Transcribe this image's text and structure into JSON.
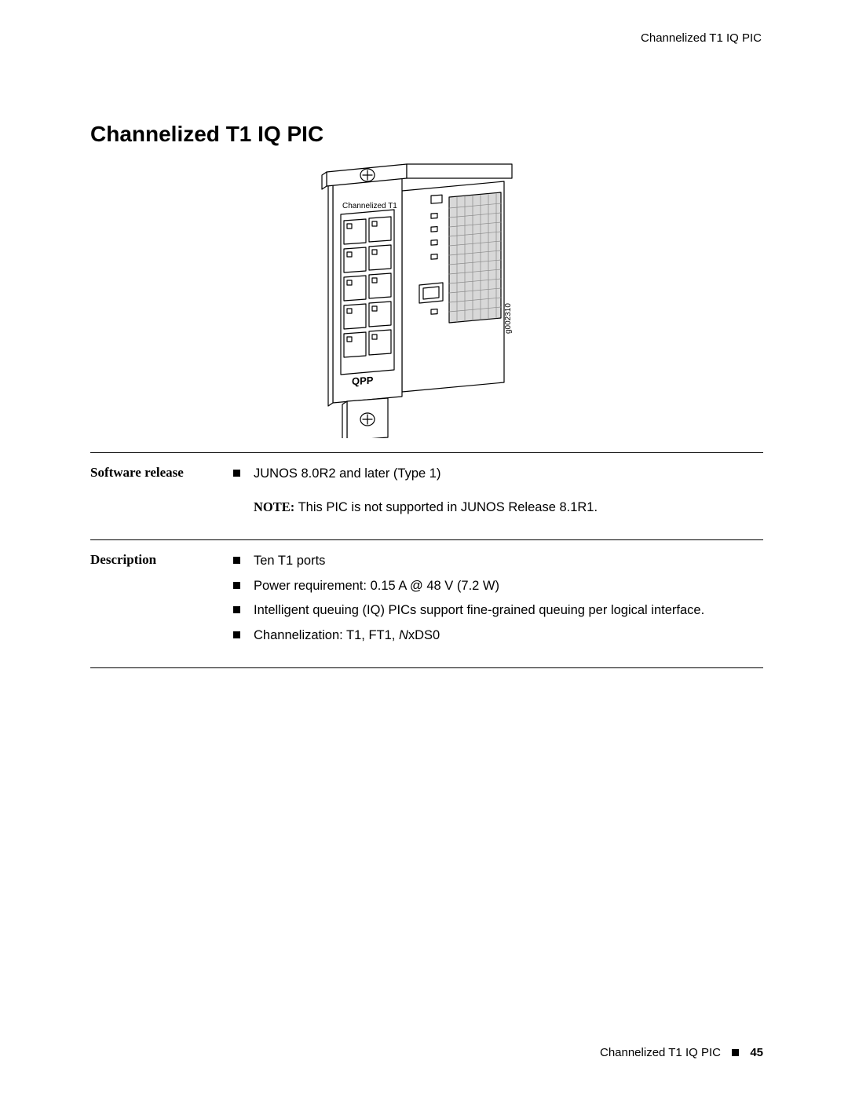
{
  "header": {
    "right": "Channelized T1 IQ PIC"
  },
  "title": "Channelized T1 IQ PIC",
  "figure": {
    "face_label": "Channelized T1",
    "ref_label": "g002310",
    "qpp_label": "QPP",
    "port_rows": 5,
    "colors": {
      "outline": "#000000",
      "fill": "#ffffff",
      "grid_fill": "#cccccc"
    }
  },
  "sections": [
    {
      "label": "Software release",
      "items": [
        "JUNOS 8.0R2 and later (Type 1)"
      ],
      "note_prefix": "NOTE:",
      "note": "This PIC is not supported in JUNOS Release 8.1R1."
    },
    {
      "label": "Description",
      "items": [
        "Ten T1 ports",
        "Power requirement: 0.15 A @ 48 V (7.2 W)",
        "Intelligent queuing (IQ) PICs support fine-grained queuing per logical interface.",
        "Channelization: T1, FT1, NxDS0"
      ]
    }
  ],
  "footer": {
    "text": "Channelized T1 IQ PIC",
    "page": "45"
  }
}
